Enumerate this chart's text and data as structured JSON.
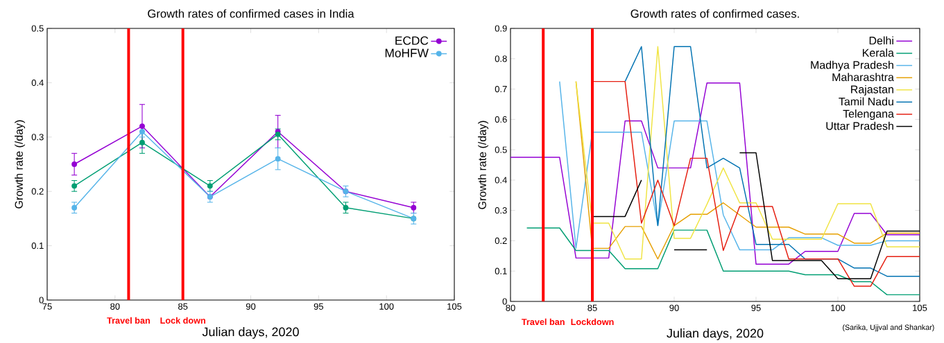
{
  "chart_data": [
    {
      "type": "line",
      "title": "Growth rates of  confirmed cases in India",
      "xlabel": "Julian days, 2020",
      "ylabel": "Growth rate (/day)",
      "x": [
        77,
        82,
        87,
        92,
        97,
        102
      ],
      "series": [
        {
          "name": "ECDC",
          "color": "#9400d3",
          "values": [
            0.25,
            0.32,
            0.19,
            0.31,
            0.2,
            0.17
          ],
          "errors": [
            0.02,
            0.04,
            null,
            0.03,
            null,
            0.01
          ]
        },
        {
          "color": "#009e73",
          "values": [
            0.21,
            0.29,
            0.21,
            0.305,
            0.17,
            0.15
          ],
          "errors": [
            0.01,
            0.02,
            0.01,
            0.01,
            0.01,
            null
          ]
        },
        {
          "name": "MoHFW",
          "color": "#56b4e9",
          "values": [
            0.17,
            0.31,
            0.19,
            0.26,
            0.2,
            0.15
          ],
          "errors": [
            0.01,
            0.01,
            0.01,
            0.02,
            0.01,
            0.01
          ]
        }
      ],
      "xlim": [
        75,
        105
      ],
      "ylim": [
        0,
        0.5
      ],
      "xticks": [
        75,
        80,
        85,
        90,
        95,
        100,
        105
      ],
      "yticks": [
        0,
        0.1,
        0.2,
        0.3,
        0.4,
        0.5
      ],
      "marker": "circle",
      "legend": "top right",
      "ref_lines": [
        {
          "axis": "x",
          "value": 81,
          "label": "Travel ban",
          "color": "#ff0000"
        },
        {
          "axis": "x",
          "value": 85,
          "label": "Lock down",
          "color": "#ff0000"
        }
      ]
    },
    {
      "type": "line",
      "title": "Growth rates of confirmed cases.",
      "xlabel": "Julian days, 2020",
      "ylabel": "Growth rate (/day)",
      "x": [
        80,
        81,
        82,
        83,
        84,
        85,
        86,
        87,
        88,
        89,
        90,
        91,
        92,
        93,
        94,
        95,
        96,
        97,
        98,
        99,
        100,
        101,
        102,
        103,
        104,
        105
      ],
      "series": [
        {
          "name": "Delhi",
          "color": "#9400d3",
          "values": [
            0.475,
            0.475,
            0.475,
            0.475,
            0.143,
            0.143,
            0.143,
            0.595,
            0.595,
            0.44,
            0.44,
            0.44,
            0.72,
            0.72,
            0.72,
            0.123,
            0.123,
            0.123,
            0.165,
            0.165,
            0.165,
            0.29,
            0.29,
            0.22,
            0.22,
            0.22
          ]
        },
        {
          "name": "Kerala",
          "color": "#009e73",
          "values": [
            null,
            0.242,
            0.242,
            0.242,
            0.168,
            0.168,
            0.168,
            0.108,
            0.108,
            0.108,
            0.235,
            0.235,
            0.235,
            0.1,
            0.1,
            0.1,
            0.1,
            0.1,
            0.088,
            0.088,
            0.088,
            0.065,
            0.065,
            0.022,
            0.022,
            0.022
          ]
        },
        {
          "name": "Madhya Pradesh",
          "color": "#56b4e9",
          "values": [
            null,
            null,
            null,
            0.725,
            0.175,
            0.558,
            0.558,
            0.558,
            0.558,
            0.25,
            0.595,
            0.595,
            0.595,
            0.285,
            0.17,
            0.17,
            0.17,
            0.21,
            0.21,
            0.21,
            0.185,
            0.185,
            0.185,
            0.2,
            0.2,
            0.2
          ]
        },
        {
          "name": "Maharashtra",
          "color": "#e69f00",
          "values": [
            null,
            null,
            null,
            null,
            0.725,
            0.175,
            0.175,
            0.247,
            0.247,
            0.14,
            0.25,
            0.287,
            0.287,
            0.325,
            0.285,
            0.245,
            0.245,
            0.245,
            0.222,
            0.222,
            0.222,
            0.192,
            0.192,
            0.225,
            0.225,
            0.225
          ]
        },
        {
          "name": "Rajastan",
          "color": "#f0e442",
          "values": [
            null,
            null,
            null,
            null,
            0.725,
            0.258,
            0.258,
            0.14,
            0.14,
            0.84,
            0.208,
            0.208,
            0.32,
            0.44,
            0.325,
            0.325,
            0.205,
            0.205,
            0.205,
            0.205,
            0.322,
            0.322,
            0.322,
            0.18,
            0.18,
            0.18
          ]
        },
        {
          "name": "Tamil Nadu",
          "color": "#0072b2",
          "values": [
            null,
            null,
            null,
            null,
            null,
            null,
            null,
            0.725,
            0.84,
            0.25,
            0.84,
            0.84,
            0.44,
            0.472,
            0.44,
            0.188,
            0.188,
            0.188,
            0.14,
            0.14,
            0.14,
            0.11,
            0.11,
            0.083,
            0.083,
            0.083
          ]
        },
        {
          "name": "Telengana",
          "color": "#e51e10",
          "values": [
            null,
            null,
            null,
            null,
            null,
            0.725,
            0.725,
            0.725,
            0.258,
            0.4,
            0.25,
            0.472,
            0.472,
            0.168,
            0.313,
            0.313,
            0.313,
            0.14,
            0.14,
            0.14,
            0.14,
            0.05,
            0.05,
            0.148,
            0.148,
            0.148
          ]
        },
        {
          "name": "Uttar Pradesh",
          "color": "#000000",
          "values": [
            null,
            null,
            null,
            null,
            null,
            0.28,
            0.28,
            0.28,
            0.4,
            null,
            0.17,
            0.17,
            0.17,
            null,
            0.49,
            0.49,
            0.135,
            0.135,
            0.135,
            0.135,
            0.075,
            0.075,
            0.075,
            0.232,
            0.232,
            0.232
          ]
        }
      ],
      "xlim": [
        80,
        105
      ],
      "ylim": [
        0,
        0.9
      ],
      "xticks": [
        80,
        85,
        90,
        95,
        100,
        105
      ],
      "yticks": [
        0,
        0.1,
        0.2,
        0.3,
        0.4,
        0.5,
        0.6,
        0.7,
        0.8,
        0.9
      ],
      "marker": "none",
      "legend": "top right",
      "ref_lines": [
        {
          "axis": "x",
          "value": 82,
          "label": "Travel ban",
          "color": "#ff0000"
        },
        {
          "axis": "x",
          "value": 85,
          "label": "Lockdown",
          "color": "#ff0000"
        }
      ],
      "annotations": [
        "(Sarika, Ujjval and Shankar)"
      ]
    }
  ]
}
